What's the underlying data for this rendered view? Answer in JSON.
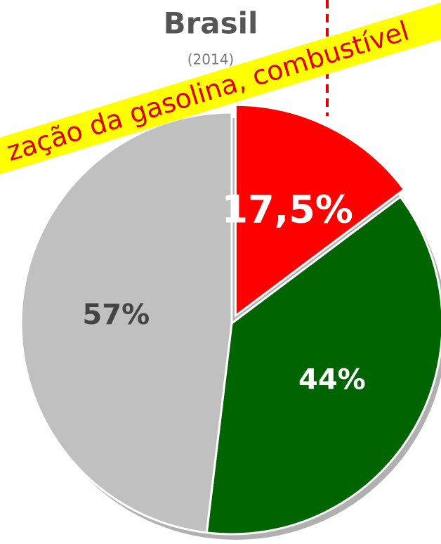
{
  "chart_data": {
    "type": "pie",
    "title": "Brasil",
    "subtitle": "(2014)",
    "annotation": "zação da gasolina, combustível",
    "categories": [
      null,
      null,
      null
    ],
    "values": [
      17.5,
      44,
      57
    ],
    "value_labels": [
      "17,5%",
      "44%",
      "57%"
    ],
    "colors": [
      "#ff0000",
      "#006400",
      "#c0c0c0"
    ],
    "label_colors": [
      "#ffffff",
      "#ffffff",
      "#444444"
    ]
  }
}
